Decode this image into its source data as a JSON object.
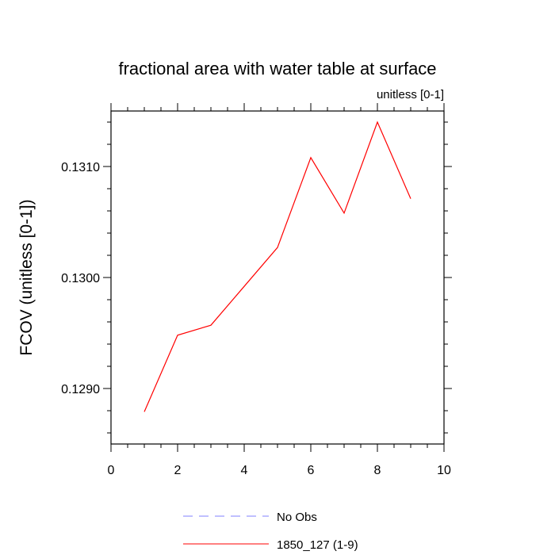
{
  "chart_data": {
    "type": "line",
    "title": "fractional area with water table at surface",
    "units_label": "unitless [0-1]",
    "xlabel": "",
    "ylabel": "FCOV  (unitless [0-1])",
    "xlim": [
      0,
      10
    ],
    "ylim": [
      0.1285,
      0.1315
    ],
    "x_ticks": [
      0,
      2,
      4,
      6,
      8,
      10
    ],
    "x_tick_labels": [
      "0",
      "2",
      "4",
      "6",
      "8",
      "10"
    ],
    "y_ticks": [
      0.129,
      0.13,
      0.131
    ],
    "y_tick_labels": [
      "0.1290",
      "0.1300",
      "0.1310"
    ],
    "grid": false,
    "legend_position": "bottom-center",
    "series": [
      {
        "name": "No Obs",
        "color": "#8080ff",
        "dash": "dashed",
        "x": [],
        "y": []
      },
      {
        "name": "1850_127 (1-9)",
        "color": "#ff0000",
        "dash": "solid",
        "x": [
          1,
          2,
          3,
          4,
          5,
          6,
          7,
          8,
          9
        ],
        "y": [
          0.12879,
          0.12948,
          0.12957,
          0.12992,
          0.13027,
          0.13108,
          0.13058,
          0.1314,
          0.13071
        ]
      }
    ]
  }
}
